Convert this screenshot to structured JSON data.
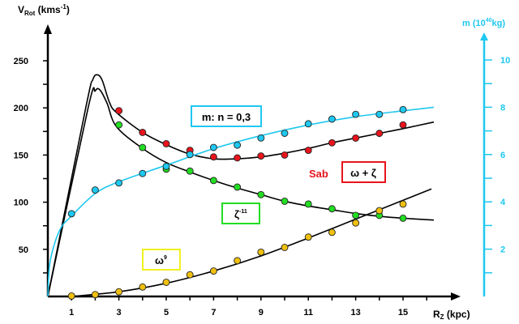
{
  "chart_data": {
    "type": "scatter",
    "y_left": {
      "label_main": "V",
      "label_sub": "Rot",
      "label_unit": " (kms",
      "label_exp": "-1",
      "label_close": ")",
      "range": [
        0,
        280
      ],
      "ticks": [
        50,
        100,
        150,
        200,
        250
      ],
      "minor_step": 25
    },
    "y_right": {
      "label_main": "m (10",
      "label_exp": "40",
      "label_unit": "kg)",
      "range": [
        0,
        11.5
      ],
      "ticks": [
        2,
        4,
        6,
        8,
        10
      ],
      "minor_step": 1,
      "color": "#1ec8f0"
    },
    "x_axis": {
      "label_main": "R",
      "label_sub": "Z",
      "label_unit": " (kpc)",
      "range": [
        0,
        17.5
      ],
      "ticks": [
        1,
        3,
        5,
        7,
        9,
        11,
        13,
        15
      ],
      "minor_step": 1
    },
    "x": [
      1,
      2,
      3,
      4,
      5,
      6,
      7,
      8,
      9,
      10,
      11,
      12,
      13,
      14,
      15
    ],
    "series": [
      {
        "name": "ω + ζ",
        "color": "#e8141c",
        "axis": "left",
        "x": [
          3,
          4,
          5,
          6,
          7,
          8,
          9,
          10,
          11,
          12,
          13,
          14,
          15
        ],
        "values": [
          197,
          174,
          162,
          155,
          148,
          147,
          149,
          150,
          155,
          163,
          168,
          173,
          182
        ]
      },
      {
        "name": "ζ-11",
        "color": "#22dd22",
        "axis": "left",
        "x": [
          3,
          4,
          5,
          6,
          7,
          8,
          9,
          10,
          11,
          12,
          13,
          14,
          15
        ],
        "values": [
          182,
          158,
          135,
          133,
          123,
          116,
          108,
          101,
          98,
          93,
          86,
          86,
          83
        ]
      },
      {
        "name": "ω9",
        "color": "#f0c010",
        "axis": "left",
        "x": [
          1,
          2,
          3,
          4,
          5,
          6,
          7,
          8,
          9,
          10,
          11,
          12,
          13,
          14,
          15
        ],
        "values": [
          0.5,
          2,
          5,
          10,
          15,
          23,
          27,
          38,
          47,
          52,
          63,
          68,
          78,
          91,
          98
        ]
      },
      {
        "name": "m: n = 0,3",
        "color": "#1ec8f0",
        "axis": "right",
        "x": [
          1,
          2,
          3,
          4,
          5,
          6,
          7,
          8,
          9,
          10,
          11,
          12,
          13,
          14,
          15
        ],
        "values": [
          3.5,
          4.5,
          4.8,
          5.2,
          5.5,
          6.0,
          6.3,
          6.4,
          6.7,
          6.9,
          7.3,
          7.5,
          7.7,
          7.7,
          7.9
        ]
      }
    ],
    "fit_curves": [
      {
        "name": "total-fit-upper",
        "color": "#000000",
        "axis": "left",
        "points": [
          [
            0,
            0
          ],
          [
            1.6,
            200
          ],
          [
            1.9,
            230
          ],
          [
            2.1,
            235
          ],
          [
            2.3,
            229
          ],
          [
            2.6,
            206
          ],
          [
            2.9,
            195
          ],
          [
            4,
            174
          ],
          [
            5,
            161
          ],
          [
            6,
            151
          ],
          [
            7,
            146
          ],
          [
            8,
            146
          ],
          [
            9,
            148
          ],
          [
            10,
            152
          ],
          [
            11,
            157
          ],
          [
            12,
            163
          ],
          [
            13,
            168
          ],
          [
            14,
            173
          ],
          [
            15,
            178
          ],
          [
            16.3,
            185
          ]
        ]
      },
      {
        "name": "zeta-fit",
        "color": "#000000",
        "axis": "left",
        "points": [
          [
            0,
            0
          ],
          [
            1.7,
            200
          ],
          [
            2,
            218
          ],
          [
            2.2,
            219
          ],
          [
            2.5,
            205
          ],
          [
            2.9,
            180
          ],
          [
            4,
            157
          ],
          [
            5,
            142
          ],
          [
            6,
            132
          ],
          [
            7,
            123
          ],
          [
            8,
            115
          ],
          [
            9,
            108
          ],
          [
            10,
            101
          ],
          [
            11,
            96
          ],
          [
            12,
            92
          ],
          [
            13,
            88
          ],
          [
            14,
            85
          ],
          [
            15,
            83
          ],
          [
            16.3,
            81
          ]
        ]
      },
      {
        "name": "omega-fit",
        "color": "#000000",
        "axis": "left",
        "points": [
          [
            1,
            0
          ],
          [
            3,
            5
          ],
          [
            5,
            14
          ],
          [
            7,
            27
          ],
          [
            9,
            43
          ],
          [
            11,
            62
          ],
          [
            13,
            82
          ],
          [
            15,
            102
          ],
          [
            16.2,
            114
          ]
        ]
      },
      {
        "name": "mass-fit",
        "color": "#1ec8f0",
        "axis": "right",
        "points": [
          [
            0,
            0
          ],
          [
            0.1,
            1.5
          ],
          [
            0.5,
            2.8
          ],
          [
            1,
            3.4
          ],
          [
            2,
            4.35
          ],
          [
            3,
            4.85
          ],
          [
            5,
            5.55
          ],
          [
            7,
            6.25
          ],
          [
            9,
            6.8
          ],
          [
            11,
            7.25
          ],
          [
            13,
            7.6
          ],
          [
            15,
            7.85
          ],
          [
            16.3,
            8.0
          ]
        ]
      }
    ],
    "annotations": {
      "mass_box": "m: n = 0,3",
      "galaxy_type": "Sab",
      "sum_box": "ω + ζ",
      "zeta_box_main": "ζ",
      "zeta_box_exp": "-11",
      "omega_box_main": "ω",
      "omega_box_exp": "9"
    }
  }
}
